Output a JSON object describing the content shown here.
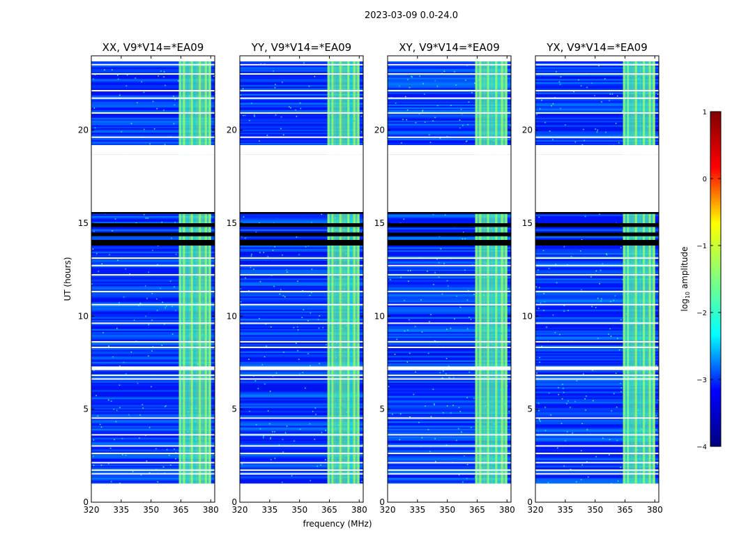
{
  "figure": {
    "suptitle": "2023-03-09 0.0-24.0",
    "colorbar": {
      "label_prefix": "log",
      "label_sub": "10",
      "label_suffix": " amplitude",
      "range": [
        -4,
        1
      ],
      "ticks": [
        {
          "v": 1,
          "t": "1"
        },
        {
          "v": 0,
          "t": "0"
        },
        {
          "v": -1,
          "t": "−1"
        },
        {
          "v": -2,
          "t": "−2"
        },
        {
          "v": -3,
          "t": "−3"
        },
        {
          "v": -4,
          "t": "−4"
        }
      ],
      "colormap": "jet",
      "colors": [
        "#00007f",
        "#0000ff",
        "#00ffff",
        "#7fff7f",
        "#ffff00",
        "#ff0000",
        "#7f0000"
      ]
    }
  },
  "chart_data": {
    "type": "heatmap",
    "xlabel": "frequency (MHz)",
    "ylabel": "UT (hours)",
    "xlim": [
      320,
      382
    ],
    "ylim": [
      0,
      24
    ],
    "xticks": [
      320,
      335,
      350,
      365,
      380
    ],
    "yticks": [
      0,
      5,
      10,
      15,
      20
    ],
    "panels": [
      {
        "title": "XX, V9*V14=*EA09"
      },
      {
        "title": "YY, V9*V14=*EA09"
      },
      {
        "title": "XY, V9*V14=*EA09"
      },
      {
        "title": "YX, V9*V14=*EA09"
      }
    ],
    "data_time_range": [
      1.0,
      23.7
    ],
    "blank_gaps_hours": [
      [
        18.7,
        19.2
      ],
      [
        15.6,
        18.7
      ],
      [
        7.1,
        7.3
      ]
    ],
    "flagged_black_rows_hours": [
      [
        15.5,
        15.6
      ],
      [
        14.8,
        15.0
      ],
      [
        14.3,
        14.5
      ],
      [
        13.8,
        14.1
      ]
    ],
    "rfi_band_mhz": [
      364,
      380
    ],
    "rfi_channels_mhz": [
      364,
      366,
      370,
      374,
      377,
      379
    ],
    "background_log_amplitude": -3.0,
    "rfi_log_amplitude": -1.8,
    "peak_log_amplitude": -1.0
  }
}
